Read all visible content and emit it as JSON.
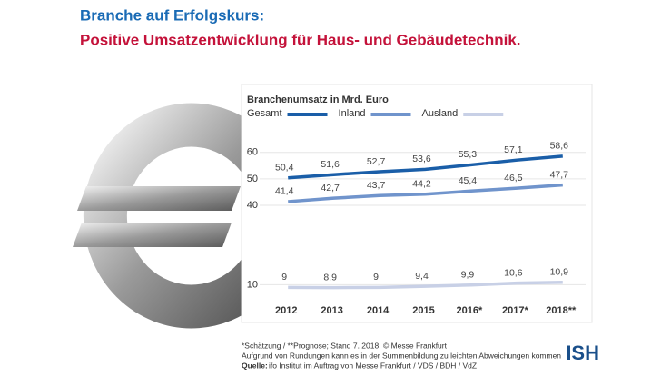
{
  "header": {
    "title": "Branche auf Erfolgskurs:",
    "subtitle": "Positive Umsatzentwicklung für Haus- und Gebäudetechnik."
  },
  "chart_data": {
    "type": "line",
    "title": "Branchenumsatz in Mrd. Euro",
    "categories": [
      "2012",
      "2013",
      "2014",
      "2015",
      "2016*",
      "2017*",
      "2018**"
    ],
    "series": [
      {
        "name": "Gesamt",
        "color": "#1a5ea8",
        "values": [
          50.4,
          51.6,
          52.7,
          53.6,
          55.3,
          57.1,
          58.6
        ],
        "value_labels": [
          "50,4",
          "51,6",
          "52,7",
          "53,6",
          "55,3",
          "57,1",
          "58,6"
        ]
      },
      {
        "name": "Inland",
        "color": "#7094cc",
        "values": [
          41.4,
          42.7,
          43.7,
          44.2,
          45.4,
          46.5,
          47.7
        ],
        "value_labels": [
          "41,4",
          "42,7",
          "43,7",
          "44,2",
          "45,4",
          "46,5",
          "47,7"
        ]
      },
      {
        "name": "Ausland",
        "color": "#c8d0e6",
        "values": [
          9,
          8.9,
          9,
          9.4,
          9.9,
          10.6,
          10.9
        ],
        "value_labels": [
          "9",
          "8,9",
          "9",
          "9,4",
          "9,9",
          "10,6",
          "10,9"
        ]
      }
    ],
    "ylim": [
      5,
      63
    ],
    "yticks": [
      10,
      40,
      50,
      60
    ],
    "grid": true,
    "legend": "top"
  },
  "footnotes": [
    "*Schätzung / **Prognose; Stand 7. 2018, © Messe Frankfurt",
    "Aufgrund von Rundungen kann es in der Summenbildung zu leichten Abweichungen kommen"
  ],
  "source": {
    "label": "Quelle:",
    "text": "ifo Institut im Auftrag von Messe Frankfurt / VDS / BDH / VdZ"
  },
  "logo": "ISH"
}
